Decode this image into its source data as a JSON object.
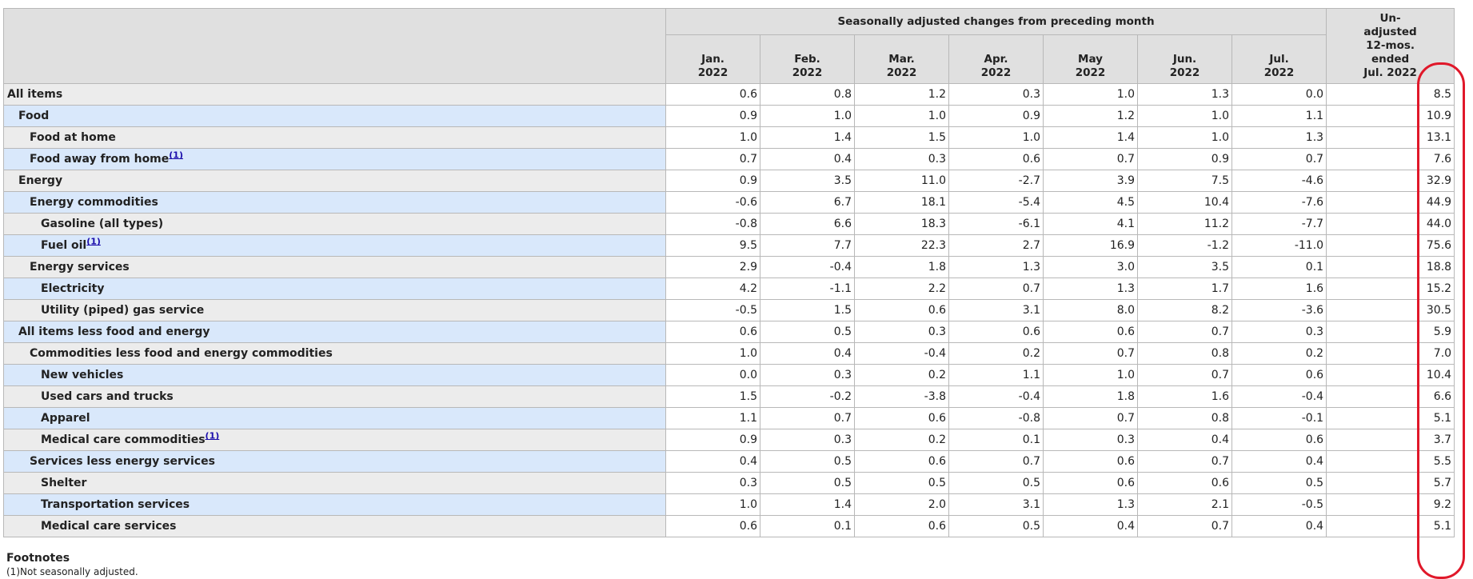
{
  "table": {
    "group_header": "Seasonally adjusted changes from preceding month",
    "unadjusted_header": [
      "Un-",
      "adjusted",
      "12-mos.",
      "ended",
      "Jul. 2022"
    ],
    "months": [
      {
        "month": "Jan.",
        "year": "2022"
      },
      {
        "month": "Feb.",
        "year": "2022"
      },
      {
        "month": "Mar.",
        "year": "2022"
      },
      {
        "month": "Apr.",
        "year": "2022"
      },
      {
        "month": "May",
        "year": "2022"
      },
      {
        "month": "Jun.",
        "year": "2022"
      },
      {
        "month": "Jul.",
        "year": "2022"
      }
    ],
    "rows": [
      {
        "label": "All items",
        "level": 0,
        "footnote": "",
        "values": [
          "0.6",
          "0.8",
          "1.2",
          "0.3",
          "1.0",
          "1.3",
          "0.0"
        ],
        "unadjusted": "8.5"
      },
      {
        "label": "Food",
        "level": 1,
        "footnote": "",
        "values": [
          "0.9",
          "1.0",
          "1.0",
          "0.9",
          "1.2",
          "1.0",
          "1.1"
        ],
        "unadjusted": "10.9"
      },
      {
        "label": "Food at home",
        "level": 2,
        "footnote": "",
        "values": [
          "1.0",
          "1.4",
          "1.5",
          "1.0",
          "1.4",
          "1.0",
          "1.3"
        ],
        "unadjusted": "13.1"
      },
      {
        "label": "Food away from home",
        "level": 2,
        "footnote": "(1)",
        "values": [
          "0.7",
          "0.4",
          "0.3",
          "0.6",
          "0.7",
          "0.9",
          "0.7"
        ],
        "unadjusted": "7.6"
      },
      {
        "label": "Energy",
        "level": 1,
        "footnote": "",
        "values": [
          "0.9",
          "3.5",
          "11.0",
          "-2.7",
          "3.9",
          "7.5",
          "-4.6"
        ],
        "unadjusted": "32.9"
      },
      {
        "label": "Energy commodities",
        "level": 2,
        "footnote": "",
        "values": [
          "-0.6",
          "6.7",
          "18.1",
          "-5.4",
          "4.5",
          "10.4",
          "-7.6"
        ],
        "unadjusted": "44.9"
      },
      {
        "label": "Gasoline (all types)",
        "level": 3,
        "footnote": "",
        "values": [
          "-0.8",
          "6.6",
          "18.3",
          "-6.1",
          "4.1",
          "11.2",
          "-7.7"
        ],
        "unadjusted": "44.0"
      },
      {
        "label": "Fuel oil",
        "level": 3,
        "footnote": "(1)",
        "values": [
          "9.5",
          "7.7",
          "22.3",
          "2.7",
          "16.9",
          "-1.2",
          "-11.0"
        ],
        "unadjusted": "75.6"
      },
      {
        "label": "Energy services",
        "level": 2,
        "footnote": "",
        "values": [
          "2.9",
          "-0.4",
          "1.8",
          "1.3",
          "3.0",
          "3.5",
          "0.1"
        ],
        "unadjusted": "18.8"
      },
      {
        "label": "Electricity",
        "level": 3,
        "footnote": "",
        "values": [
          "4.2",
          "-1.1",
          "2.2",
          "0.7",
          "1.3",
          "1.7",
          "1.6"
        ],
        "unadjusted": "15.2"
      },
      {
        "label": "Utility (piped) gas service",
        "level": 3,
        "footnote": "",
        "values": [
          "-0.5",
          "1.5",
          "0.6",
          "3.1",
          "8.0",
          "8.2",
          "-3.6"
        ],
        "unadjusted": "30.5"
      },
      {
        "label": "All items less food and energy",
        "level": 1,
        "footnote": "",
        "values": [
          "0.6",
          "0.5",
          "0.3",
          "0.6",
          "0.6",
          "0.7",
          "0.3"
        ],
        "unadjusted": "5.9"
      },
      {
        "label": "Commodities less food and energy commodities",
        "level": 2,
        "footnote": "",
        "values": [
          "1.0",
          "0.4",
          "-0.4",
          "0.2",
          "0.7",
          "0.8",
          "0.2"
        ],
        "unadjusted": "7.0"
      },
      {
        "label": "New vehicles",
        "level": 3,
        "footnote": "",
        "values": [
          "0.0",
          "0.3",
          "0.2",
          "1.1",
          "1.0",
          "0.7",
          "0.6"
        ],
        "unadjusted": "10.4"
      },
      {
        "label": "Used cars and trucks",
        "level": 3,
        "footnote": "",
        "values": [
          "1.5",
          "-0.2",
          "-3.8",
          "-0.4",
          "1.8",
          "1.6",
          "-0.4"
        ],
        "unadjusted": "6.6"
      },
      {
        "label": "Apparel",
        "level": 3,
        "footnote": "",
        "values": [
          "1.1",
          "0.7",
          "0.6",
          "-0.8",
          "0.7",
          "0.8",
          "-0.1"
        ],
        "unadjusted": "5.1"
      },
      {
        "label": "Medical care commodities",
        "level": 3,
        "footnote": "(1)",
        "values": [
          "0.9",
          "0.3",
          "0.2",
          "0.1",
          "0.3",
          "0.4",
          "0.6"
        ],
        "unadjusted": "3.7"
      },
      {
        "label": "Services less energy services",
        "level": 2,
        "footnote": "",
        "values": [
          "0.4",
          "0.5",
          "0.6",
          "0.7",
          "0.6",
          "0.7",
          "0.4"
        ],
        "unadjusted": "5.5"
      },
      {
        "label": "Shelter",
        "level": 3,
        "footnote": "",
        "values": [
          "0.3",
          "0.5",
          "0.5",
          "0.5",
          "0.6",
          "0.6",
          "0.5"
        ],
        "unadjusted": "5.7"
      },
      {
        "label": "Transportation services",
        "level": 3,
        "footnote": "",
        "values": [
          "1.0",
          "1.4",
          "2.0",
          "3.1",
          "1.3",
          "2.1",
          "-0.5"
        ],
        "unadjusted": "9.2"
      },
      {
        "label": "Medical care services",
        "level": 3,
        "footnote": "",
        "values": [
          "0.6",
          "0.1",
          "0.6",
          "0.5",
          "0.4",
          "0.7",
          "0.4"
        ],
        "unadjusted": "5.1"
      }
    ]
  },
  "footnotes": {
    "title": "Footnotes",
    "text": "(1)Not seasonally adjusted."
  },
  "colors": {
    "header_bg": "#e0e0e0",
    "row_odd_bg": "#ececec",
    "row_even_bg": "#d9e8fb",
    "link": "#1a0dab",
    "annotation": "#e0182a"
  }
}
